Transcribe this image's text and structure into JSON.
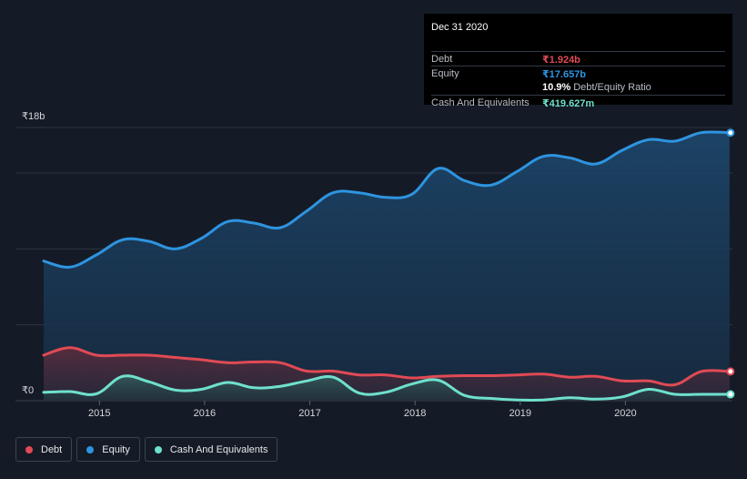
{
  "colors": {
    "debt": "#e04a55",
    "equity": "#2e94e0",
    "cash": "#6fe0cd",
    "background": "#151b26",
    "grid": "#2c3341"
  },
  "tooltip": {
    "date": "Dec 31 2020",
    "rows": [
      {
        "label": "Debt",
        "value": "₹1.924b",
        "color": "#e04a55"
      },
      {
        "label": "Equity",
        "value": "₹17.657b",
        "color": "#2e94e0"
      },
      {
        "label": "",
        "value": "10.9%",
        "suffix": "Debt/Equity Ratio",
        "color": "#ffffff"
      },
      {
        "label": "Cash And Equivalents",
        "value": "₹419.627m",
        "color": "#6fe0cd"
      }
    ]
  },
  "legend": [
    {
      "label": "Debt",
      "color": "#e04a55"
    },
    {
      "label": "Equity",
      "color": "#2e94e0"
    },
    {
      "label": "Cash And Equivalents",
      "color": "#6fe0cd"
    }
  ],
  "chart_data": {
    "type": "area",
    "title": "",
    "xlabel": "",
    "ylabel": "",
    "y_top_label": "₹18b",
    "y_bottom_label": "₹0",
    "ylim": [
      0,
      18
    ],
    "xlim": [
      2014.47,
      2021.0
    ],
    "x_ticks": [
      {
        "value": 2015,
        "label": "2015"
      },
      {
        "value": 2016,
        "label": "2016"
      },
      {
        "value": 2017,
        "label": "2017"
      },
      {
        "value": 2018,
        "label": "2018"
      },
      {
        "value": 2019,
        "label": "2019"
      },
      {
        "value": 2020,
        "label": "2020"
      }
    ],
    "grid": true,
    "legend_position": "bottom-left",
    "series": [
      {
        "name": "Equity",
        "points": [
          [
            2014.47,
            9.2
          ],
          [
            2014.72,
            8.8
          ],
          [
            2014.97,
            9.6
          ],
          [
            2015.22,
            10.6
          ],
          [
            2015.47,
            10.5
          ],
          [
            2015.72,
            10.0
          ],
          [
            2015.97,
            10.7
          ],
          [
            2016.22,
            11.8
          ],
          [
            2016.47,
            11.7
          ],
          [
            2016.72,
            11.4
          ],
          [
            2016.97,
            12.5
          ],
          [
            2017.22,
            13.7
          ],
          [
            2017.47,
            13.7
          ],
          [
            2017.72,
            13.4
          ],
          [
            2017.97,
            13.6
          ],
          [
            2018.22,
            15.3
          ],
          [
            2018.47,
            14.5
          ],
          [
            2018.72,
            14.2
          ],
          [
            2018.97,
            15.1
          ],
          [
            2019.22,
            16.1
          ],
          [
            2019.47,
            16.0
          ],
          [
            2019.72,
            15.6
          ],
          [
            2019.97,
            16.5
          ],
          [
            2020.22,
            17.2
          ],
          [
            2020.47,
            17.1
          ],
          [
            2020.72,
            17.657
          ],
          [
            2020.99,
            17.657
          ]
        ]
      },
      {
        "name": "Debt",
        "points": [
          [
            2014.47,
            3.0
          ],
          [
            2014.72,
            3.5
          ],
          [
            2014.97,
            3.0
          ],
          [
            2015.22,
            3.0
          ],
          [
            2015.47,
            3.0
          ],
          [
            2015.72,
            2.85
          ],
          [
            2015.97,
            2.7
          ],
          [
            2016.22,
            2.5
          ],
          [
            2016.47,
            2.55
          ],
          [
            2016.72,
            2.5
          ],
          [
            2016.97,
            1.95
          ],
          [
            2017.22,
            1.95
          ],
          [
            2017.47,
            1.7
          ],
          [
            2017.72,
            1.7
          ],
          [
            2017.97,
            1.5
          ],
          [
            2018.22,
            1.6
          ],
          [
            2018.47,
            1.65
          ],
          [
            2018.72,
            1.65
          ],
          [
            2018.97,
            1.7
          ],
          [
            2019.22,
            1.75
          ],
          [
            2019.47,
            1.55
          ],
          [
            2019.72,
            1.6
          ],
          [
            2019.97,
            1.3
          ],
          [
            2020.22,
            1.3
          ],
          [
            2020.47,
            1.05
          ],
          [
            2020.72,
            1.924
          ],
          [
            2020.99,
            1.924
          ]
        ]
      },
      {
        "name": "Cash And Equivalents",
        "points": [
          [
            2014.47,
            0.55
          ],
          [
            2014.72,
            0.6
          ],
          [
            2014.97,
            0.45
          ],
          [
            2015.22,
            1.6
          ],
          [
            2015.47,
            1.25
          ],
          [
            2015.72,
            0.7
          ],
          [
            2015.97,
            0.75
          ],
          [
            2016.22,
            1.2
          ],
          [
            2016.47,
            0.85
          ],
          [
            2016.72,
            0.95
          ],
          [
            2016.97,
            1.3
          ],
          [
            2017.22,
            1.55
          ],
          [
            2017.47,
            0.5
          ],
          [
            2017.72,
            0.55
          ],
          [
            2017.97,
            1.1
          ],
          [
            2018.22,
            1.35
          ],
          [
            2018.47,
            0.35
          ],
          [
            2018.72,
            0.15
          ],
          [
            2018.97,
            0.05
          ],
          [
            2019.22,
            0.05
          ],
          [
            2019.47,
            0.2
          ],
          [
            2019.72,
            0.1
          ],
          [
            2019.97,
            0.25
          ],
          [
            2020.22,
            0.75
          ],
          [
            2020.47,
            0.42
          ],
          [
            2020.72,
            0.419627
          ],
          [
            2020.99,
            0.419627
          ]
        ]
      }
    ]
  }
}
